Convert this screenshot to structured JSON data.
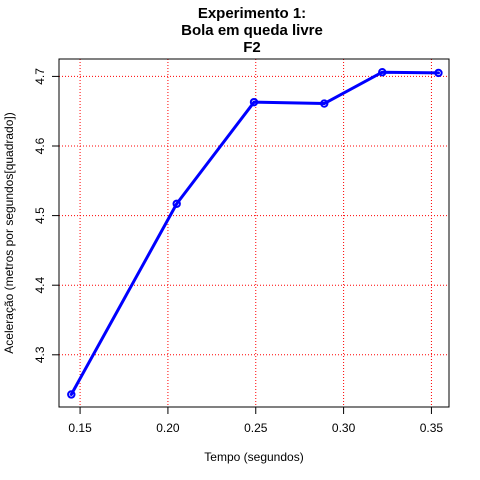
{
  "chart_data": {
    "type": "line",
    "title_lines": [
      "Experimento 1:",
      "Bola em queda livre",
      "F2"
    ],
    "xlabel": "Tempo (segundos)",
    "ylabel": "Aceleração (metros por segundos[quadrado])",
    "xlim": [
      0.138,
      0.36
    ],
    "ylim": [
      4.225,
      4.725
    ],
    "x_ticks": [
      0.15,
      0.2,
      0.25,
      0.3,
      0.35
    ],
    "x_tick_labels": [
      "0.15",
      "0.20",
      "0.25",
      "0.30",
      "0.35"
    ],
    "y_ticks": [
      4.3,
      4.4,
      4.5,
      4.6,
      4.7
    ],
    "y_tick_labels": [
      "4.3",
      "4.4",
      "4.5",
      "4.6",
      "4.7"
    ],
    "grid": true,
    "grid_color": "#ff0000",
    "series": [
      {
        "x": [
          0.145,
          0.205,
          0.249,
          0.289,
          0.322,
          0.354
        ],
        "y": [
          4.243,
          4.517,
          4.663,
          4.661,
          4.706,
          4.705
        ],
        "color": "#0000ff",
        "marker": "circle"
      }
    ]
  }
}
